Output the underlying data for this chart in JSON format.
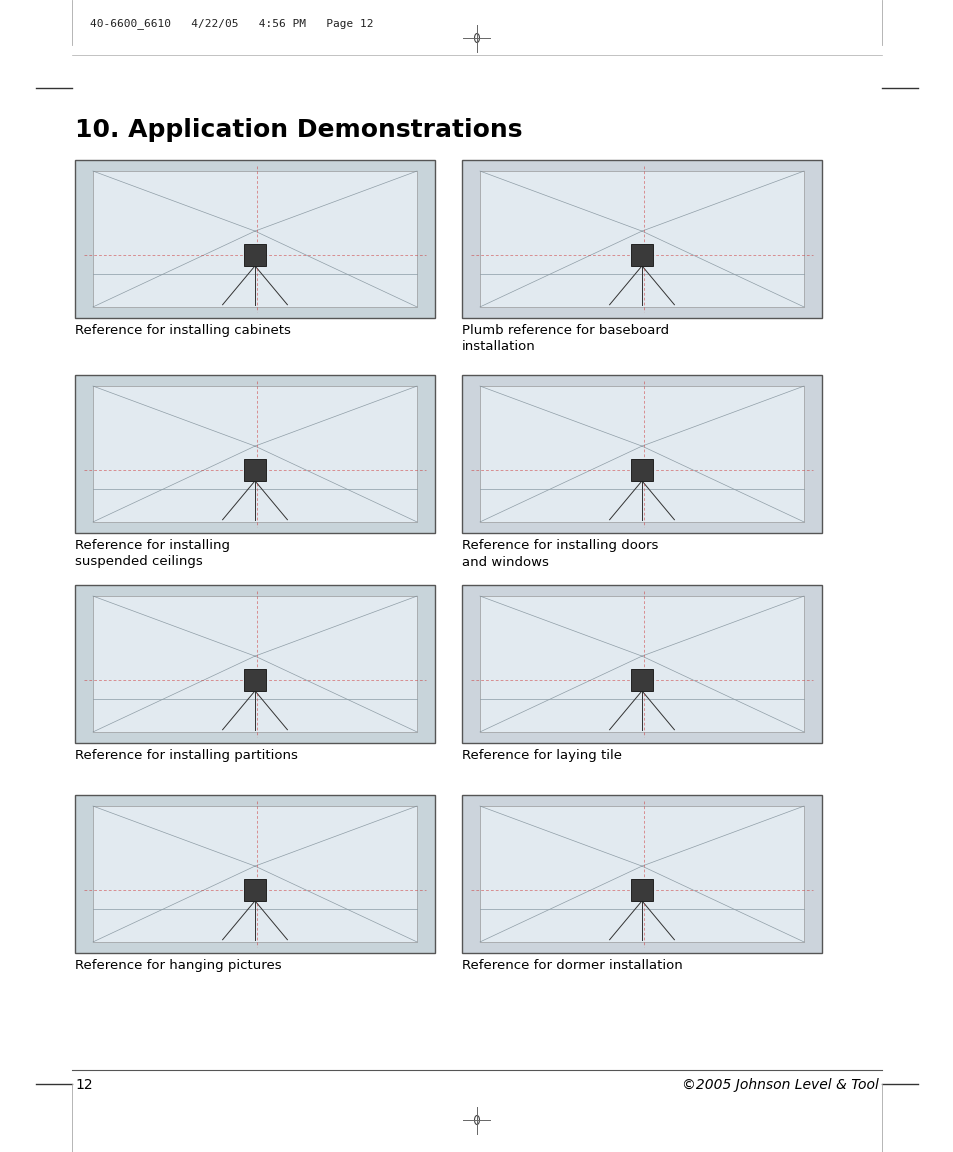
{
  "title": "10. Application Demonstrations",
  "title_fontsize": 18,
  "page_number": "12",
  "copyright": "©2005 Johnson Level & Tool",
  "header_text": "40-6600_6610   4/22/05   4:56 PM   Page 12",
  "background_color": "#ffffff",
  "text_color": "#000000",
  "images": [
    {
      "label": "Reference for installing cabinets",
      "col": 0,
      "row": 0
    },
    {
      "label": "Plumb reference for baseboard\ninstallation",
      "col": 1,
      "row": 0
    },
    {
      "label": "Reference for installing\nsuspended ceilings",
      "col": 0,
      "row": 1
    },
    {
      "label": "Reference for installing doors\nand windows",
      "col": 1,
      "row": 1
    },
    {
      "label": "Reference for installing partitions",
      "col": 0,
      "row": 2
    },
    {
      "label": "Reference for laying tile",
      "col": 1,
      "row": 2
    },
    {
      "label": "Reference for hanging pictures",
      "col": 0,
      "row": 3
    },
    {
      "label": "Reference for dormer installation",
      "col": 1,
      "row": 3
    }
  ],
  "label_fontsize": 9.5,
  "img_colors": [
    "#c8d4dc",
    "#cdd5dd",
    "#c8d4dc",
    "#cdd5dd",
    "#c8d4dc",
    "#cdd5dd",
    "#c8d4dc",
    "#cdd5dd"
  ]
}
